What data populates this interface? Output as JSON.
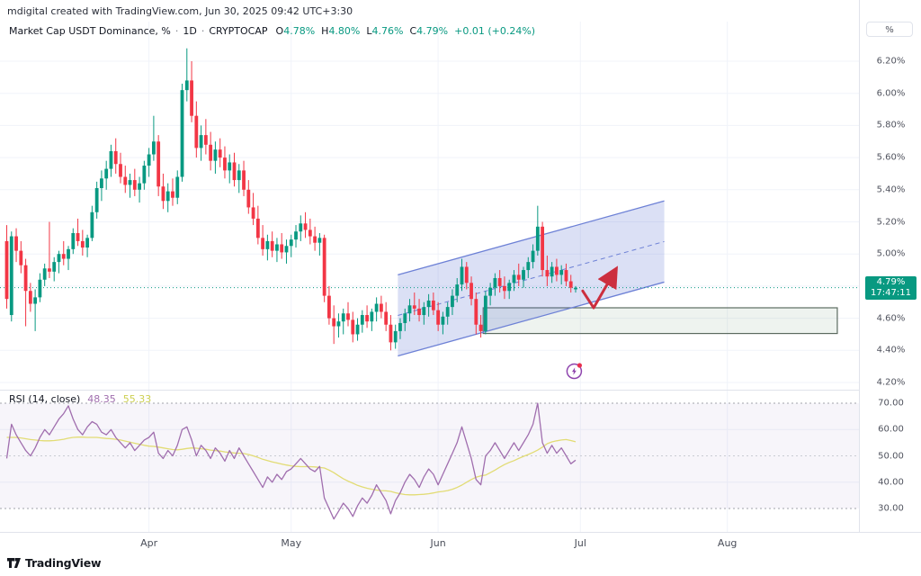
{
  "meta": {
    "attribution": "mdigital created with TradingView.com, Jun 30, 2025 09:42 UTC+3:30"
  },
  "legend": {
    "title": "Market Cap USDT Dominance, %",
    "sep": "·",
    "interval": "1D",
    "symbol": "CRYPTOCAP",
    "o_label": "O",
    "o_val": "4.78%",
    "h_label": "H",
    "h_val": "4.80%",
    "l_label": "L",
    "l_val": "4.76%",
    "c_label": "C",
    "c_val": "4.79%",
    "change": "+0.01 (+0.24%)"
  },
  "rsi_legend": {
    "label": "RSI (14, close)",
    "value": "48.35",
    "ma_value": "55.33"
  },
  "price_axis": {
    "unit_button": "%",
    "last_price": "4.79%",
    "countdown": "17:47:11"
  },
  "footer": {
    "brand": "TradingView"
  },
  "colors": {
    "up": "#089981",
    "down": "#f23645",
    "grid": "#f0f3fa",
    "channel_stroke": "#6d81d6",
    "channel_fill": "rgba(90,115,210,0.22)",
    "zone_stroke": "#5c6b60",
    "zone_fill": "rgba(120,160,130,0.13)",
    "arrow": "#cc2e3e",
    "rsi_line": "#a06eae",
    "rsi_ma": "#e2dc74",
    "rsi_band_fill": "#8f6bb7",
    "price_line": "#089981",
    "price_label_bg": "#089981",
    "icon_purple": "#8e44ad",
    "icon_dot": "#e8304e"
  },
  "chart_data": {
    "type": "candlestick_with_rsi",
    "title": "Market Cap USDT Dominance, % (CRYPTOCAP, 1D)",
    "x_unit": "daily bars, day 0 = Mar 2 2025, ends Jun 30 2025",
    "price_axis_range": [
      4.2,
      6.2
    ],
    "price_ticks": [
      6.2,
      6.0,
      5.8,
      5.6,
      5.4,
      5.2,
      5.0,
      4.8,
      4.6,
      4.4,
      4.2
    ],
    "rsi_ticks": [
      70,
      60,
      50,
      40,
      30
    ],
    "rsi_extra_grid": [
      60,
      40
    ],
    "current_price": 4.79,
    "months": [
      {
        "label": "Apr",
        "day": 30
      },
      {
        "label": "May",
        "day": 60
      },
      {
        "label": "Jun",
        "day": 91
      },
      {
        "label": "Jul",
        "day": 121
      },
      {
        "label": "Aug",
        "day": 152
      }
    ],
    "candles": [
      [
        5.08,
        5.18,
        4.66,
        4.72
      ],
      [
        4.62,
        5.14,
        4.58,
        5.11
      ],
      [
        5.11,
        5.16,
        4.95,
        5.02
      ],
      [
        5.02,
        5.08,
        4.88,
        4.93
      ],
      [
        4.93,
        4.97,
        4.55,
        4.77
      ],
      [
        4.77,
        4.82,
        4.64,
        4.69
      ],
      [
        4.69,
        4.78,
        4.52,
        4.73
      ],
      [
        4.73,
        4.88,
        4.7,
        4.84
      ],
      [
        4.84,
        4.94,
        4.8,
        4.91
      ],
      [
        4.91,
        5.2,
        4.85,
        4.89
      ],
      [
        4.89,
        4.98,
        4.83,
        4.95
      ],
      [
        4.95,
        5.02,
        4.88,
        5.0
      ],
      [
        5.0,
        5.08,
        4.93,
        4.97
      ],
      [
        4.97,
        5.05,
        4.9,
        5.03
      ],
      [
        5.03,
        5.16,
        5.0,
        5.13
      ],
      [
        5.13,
        5.22,
        5.05,
        5.08
      ],
      [
        5.08,
        5.15,
        4.99,
        5.04
      ],
      [
        5.04,
        5.12,
        4.98,
        5.1
      ],
      [
        5.1,
        5.3,
        5.08,
        5.26
      ],
      [
        5.26,
        5.45,
        5.22,
        5.41
      ],
      [
        5.41,
        5.52,
        5.33,
        5.47
      ],
      [
        5.47,
        5.58,
        5.4,
        5.53
      ],
      [
        5.53,
        5.68,
        5.48,
        5.64
      ],
      [
        5.64,
        5.72,
        5.5,
        5.56
      ],
      [
        5.56,
        5.63,
        5.44,
        5.48
      ],
      [
        5.48,
        5.55,
        5.38,
        5.43
      ],
      [
        5.43,
        5.5,
        5.35,
        5.46
      ],
      [
        5.46,
        5.53,
        5.36,
        5.4
      ],
      [
        5.4,
        5.48,
        5.32,
        5.44
      ],
      [
        5.44,
        5.58,
        5.4,
        5.55
      ],
      [
        5.55,
        5.66,
        5.48,
        5.62
      ],
      [
        5.62,
        5.86,
        5.58,
        5.7
      ],
      [
        5.7,
        5.74,
        5.36,
        5.42
      ],
      [
        5.42,
        5.5,
        5.28,
        5.33
      ],
      [
        5.33,
        5.44,
        5.26,
        5.39
      ],
      [
        5.39,
        5.47,
        5.3,
        5.35
      ],
      [
        5.35,
        5.52,
        5.31,
        5.48
      ],
      [
        5.48,
        6.06,
        5.45,
        6.02
      ],
      [
        6.02,
        6.28,
        5.95,
        6.08
      ],
      [
        6.08,
        6.2,
        5.82,
        5.86
      ],
      [
        5.86,
        5.95,
        5.6,
        5.66
      ],
      [
        5.66,
        5.8,
        5.58,
        5.74
      ],
      [
        5.74,
        5.84,
        5.62,
        5.68
      ],
      [
        5.68,
        5.76,
        5.52,
        5.58
      ],
      [
        5.58,
        5.7,
        5.5,
        5.65
      ],
      [
        5.65,
        5.72,
        5.54,
        5.6
      ],
      [
        5.6,
        5.67,
        5.47,
        5.52
      ],
      [
        5.52,
        5.62,
        5.44,
        5.57
      ],
      [
        5.57,
        5.63,
        5.42,
        5.46
      ],
      [
        5.46,
        5.56,
        5.38,
        5.52
      ],
      [
        5.52,
        5.58,
        5.36,
        5.4
      ],
      [
        5.4,
        5.46,
        5.25,
        5.29
      ],
      [
        5.29,
        5.38,
        5.18,
        5.22
      ],
      [
        5.22,
        5.3,
        5.06,
        5.1
      ],
      [
        5.1,
        5.18,
        4.99,
        5.03
      ],
      [
        5.03,
        5.12,
        4.96,
        5.08
      ],
      [
        5.08,
        5.14,
        4.98,
        5.02
      ],
      [
        5.02,
        5.1,
        4.95,
        5.06
      ],
      [
        5.06,
        5.13,
        4.97,
        5.01
      ],
      [
        5.01,
        5.09,
        4.94,
        5.05
      ],
      [
        5.05,
        5.12,
        4.98,
        5.09
      ],
      [
        5.09,
        5.18,
        5.04,
        5.14
      ],
      [
        5.14,
        5.24,
        5.08,
        5.19
      ],
      [
        5.19,
        5.26,
        5.1,
        5.15
      ],
      [
        5.15,
        5.22,
        5.06,
        5.11
      ],
      [
        5.11,
        5.17,
        5.02,
        5.07
      ],
      [
        5.07,
        5.13,
        4.99,
        5.1
      ],
      [
        5.1,
        5.12,
        4.7,
        4.74
      ],
      [
        4.74,
        4.8,
        4.56,
        4.6
      ],
      [
        4.6,
        4.68,
        4.44,
        4.55
      ],
      [
        4.55,
        4.63,
        4.48,
        4.58
      ],
      [
        4.58,
        4.66,
        4.5,
        4.63
      ],
      [
        4.63,
        4.7,
        4.55,
        4.59
      ],
      [
        4.59,
        4.64,
        4.45,
        4.5
      ],
      [
        4.5,
        4.6,
        4.46,
        4.56
      ],
      [
        4.56,
        4.65,
        4.51,
        4.62
      ],
      [
        4.62,
        4.68,
        4.54,
        4.58
      ],
      [
        4.58,
        4.66,
        4.52,
        4.64
      ],
      [
        4.64,
        4.73,
        4.58,
        4.69
      ],
      [
        4.69,
        4.74,
        4.6,
        4.64
      ],
      [
        4.64,
        4.7,
        4.52,
        4.56
      ],
      [
        4.56,
        4.62,
        4.4,
        4.45
      ],
      [
        4.45,
        4.56,
        4.41,
        4.52
      ],
      [
        4.52,
        4.6,
        4.47,
        4.57
      ],
      [
        4.57,
        4.66,
        4.52,
        4.63
      ],
      [
        4.63,
        4.72,
        4.58,
        4.68
      ],
      [
        4.68,
        4.76,
        4.62,
        4.66
      ],
      [
        4.66,
        4.72,
        4.58,
        4.62
      ],
      [
        4.62,
        4.7,
        4.56,
        4.67
      ],
      [
        4.67,
        4.75,
        4.61,
        4.71
      ],
      [
        4.71,
        4.76,
        4.62,
        4.65
      ],
      [
        4.65,
        4.7,
        4.52,
        4.56
      ],
      [
        4.56,
        4.64,
        4.5,
        4.61
      ],
      [
        4.61,
        4.7,
        4.56,
        4.67
      ],
      [
        4.67,
        4.78,
        4.62,
        4.74
      ],
      [
        4.74,
        4.85,
        4.7,
        4.81
      ],
      [
        4.81,
        4.97,
        4.77,
        4.92
      ],
      [
        4.92,
        4.95,
        4.78,
        4.82
      ],
      [
        4.82,
        4.86,
        4.68,
        4.72
      ],
      [
        4.72,
        4.76,
        4.5,
        4.56
      ],
      [
        4.56,
        4.62,
        4.48,
        4.52
      ],
      [
        4.52,
        4.77,
        4.5,
        4.74
      ],
      [
        4.74,
        4.82,
        4.68,
        4.79
      ],
      [
        4.79,
        4.88,
        4.74,
        4.85
      ],
      [
        4.85,
        4.9,
        4.76,
        4.8
      ],
      [
        4.8,
        4.86,
        4.72,
        4.77
      ],
      [
        4.77,
        4.84,
        4.72,
        4.82
      ],
      [
        4.82,
        4.9,
        4.77,
        4.87
      ],
      [
        4.87,
        4.94,
        4.8,
        4.84
      ],
      [
        4.84,
        4.92,
        4.79,
        4.9
      ],
      [
        4.9,
        4.98,
        4.85,
        4.95
      ],
      [
        4.95,
        5.06,
        4.91,
        5.02
      ],
      [
        5.02,
        5.3,
        4.99,
        5.17
      ],
      [
        5.17,
        5.2,
        4.86,
        4.9
      ],
      [
        4.9,
        4.99,
        4.8,
        4.86
      ],
      [
        4.86,
        4.95,
        4.82,
        4.92
      ],
      [
        4.92,
        4.97,
        4.83,
        4.87
      ],
      [
        4.87,
        4.93,
        4.81,
        4.9
      ],
      [
        4.9,
        4.94,
        4.8,
        4.83
      ],
      [
        4.83,
        4.87,
        4.76,
        4.79
      ],
      [
        4.78,
        4.8,
        4.76,
        4.79
      ]
    ],
    "rsi": [
      49,
      62,
      58,
      55,
      52,
      50,
      53,
      57,
      60,
      58,
      61,
      64,
      66,
      69,
      64,
      60,
      58,
      61,
      63,
      62,
      59,
      58,
      60,
      57,
      55,
      53,
      55,
      52,
      54,
      56,
      57,
      59,
      51,
      49,
      52,
      50,
      54,
      60,
      61,
      56,
      50,
      54,
      52,
      49,
      53,
      51,
      48,
      52,
      49,
      53,
      50,
      47,
      44,
      41,
      38,
      42,
      40,
      43,
      41,
      44,
      45,
      47,
      49,
      47,
      45,
      44,
      46,
      34,
      30,
      26,
      29,
      32,
      30,
      27,
      31,
      34,
      32,
      35,
      39,
      36,
      33,
      28,
      33,
      36,
      40,
      43,
      41,
      38,
      42,
      45,
      43,
      39,
      43,
      47,
      51,
      55,
      61,
      55,
      49,
      41,
      39,
      50,
      52,
      55,
      52,
      49,
      52,
      55,
      52,
      55,
      58,
      62,
      70,
      55,
      51,
      54,
      51,
      53,
      50,
      47,
      48.35
    ],
    "rsi_ma": [
      57,
      57,
      57,
      56.8,
      56.5,
      56.2,
      56,
      55.8,
      55.7,
      55.7,
      55.8,
      56,
      56.3,
      56.7,
      57,
      57.1,
      57.1,
      57,
      57,
      57,
      56.8,
      56.6,
      56.5,
      56.3,
      56,
      55.6,
      55.2,
      54.8,
      54.4,
      54,
      53.7,
      53.6,
      53.3,
      53,
      52.7,
      52.4,
      52.3,
      52.5,
      52.8,
      53,
      52.9,
      52.7,
      52.5,
      52.2,
      52,
      51.8,
      51.5,
      51.3,
      51.1,
      51,
      50.9,
      50.5,
      50,
      49.4,
      48.7,
      48.2,
      47.7,
      47.3,
      46.9,
      46.5,
      46.2,
      46,
      45.9,
      45.9,
      45.9,
      45.8,
      45.6,
      45.4,
      44.6,
      43.6,
      42.4,
      41.3,
      40.4,
      39.6,
      38.8,
      38.2,
      37.7,
      37.3,
      37,
      36.8,
      36.7,
      36.5,
      36,
      35.6,
      35.3,
      35.2,
      35.2,
      35.3,
      35.4,
      35.6,
      35.9,
      36.3,
      36.5,
      36.8,
      37.3,
      38,
      38.9,
      40,
      41,
      41.9,
      42.4,
      42.7,
      43.6,
      44.6,
      45.7,
      46.7,
      47.5,
      48.2,
      49,
      49.8,
      50.5,
      51.3,
      52.2,
      53.3,
      54.6,
      55.3,
      55.7,
      56,
      56.2,
      55.8,
      55.33
    ],
    "drawings": {
      "channel": {
        "day1": 82.5,
        "day2": 138.7,
        "top1": 4.87,
        "top2": 5.33,
        "bottom1": 4.365,
        "bottom2": 4.825
      },
      "zone": {
        "day1": 100.5,
        "day2": 175.2,
        "top": 4.665,
        "bottom": 4.505
      },
      "arrow_points": [
        [
          121.5,
          4.77
        ],
        [
          123.8,
          4.665
        ],
        [
          128.2,
          4.89
        ]
      ],
      "alert_icon": {
        "day": 119.7,
        "price": 4.27
      }
    }
  }
}
